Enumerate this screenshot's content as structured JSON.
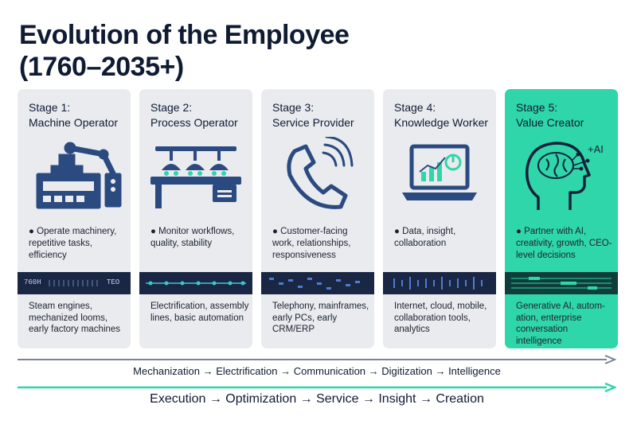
{
  "title": "Evolution of the Employee (1760–2035+)",
  "stages": [
    {
      "label": "Stage 1:",
      "name": "Machine Operator",
      "bullet": "Operate machinery, repetitive tasks, efficiency",
      "strip_left": "760H",
      "strip_right": "TEO",
      "tech": "Steam engines, mechanized looms, early factory machines",
      "icon": "factory-machine-icon"
    },
    {
      "label": "Stage 2:",
      "name": "Process Operator",
      "bullet": "Monitor workflows, quality, stability",
      "tech": "Electrification, assembly lines, basic automation",
      "icon": "assembly-line-icon"
    },
    {
      "label": "Stage 3:",
      "name": "Service Provider",
      "bullet": "Customer-facing work, relationships, responsiveness",
      "tech": "Telephony, mainframes, early PCs, early CRM/ERP",
      "icon": "telephone-icon"
    },
    {
      "label": "Stage 4:",
      "name": "Knowledge Worker",
      "bullet": "Data, insight, collaboration",
      "tech": "Internet, cloud, mobile, collaboration tools, analytics",
      "icon": "laptop-chart-icon"
    },
    {
      "label": "Stage 5:",
      "name": "Value Creator",
      "bullet": "Partner with AI, creativity, growth, CEO-level decisions",
      "tech": "Generative AI, autom-ation, enterprise conversation intelligence",
      "icon": "ai-brain-head-icon",
      "icon_text": "+AI"
    }
  ],
  "arrows": {
    "tech_eras": "Mechanization → Electrification → Communication → Digitization → Intelligence",
    "work_modes": "Execution → Optimization → Service → Insight → Creation"
  },
  "colors": {
    "navy": "#1f3a6b",
    "card": "#e9ebef",
    "highlight": "#2fd6a9",
    "strip": "#1a2744",
    "arrow_gray": "#7b8494",
    "arrow_teal": "#2fd6a9"
  }
}
